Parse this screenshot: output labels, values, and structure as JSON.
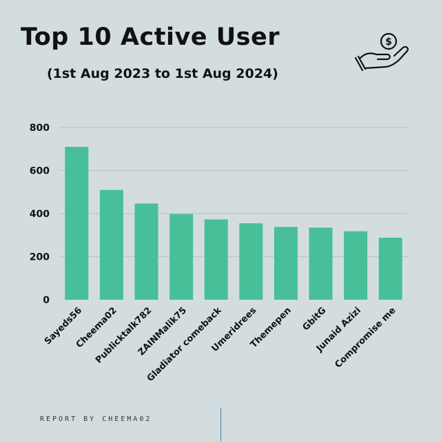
{
  "header": {
    "title": "Top 10 Active User",
    "subtitle": "(1st Aug 2023 to 1st Aug 2024)"
  },
  "icons": {
    "header_icon": "hand-dollar-coin-icon"
  },
  "footer": {
    "label": "REPORT BY CHEEMA02"
  },
  "colors": {
    "bar": "#47bf99",
    "grid": "#b7c2c5",
    "background": "#d3dde0",
    "text": "#111111"
  },
  "chart_data": {
    "type": "bar",
    "categories": [
      "Sayeds56",
      "Cheema02",
      "Publicktalk782",
      "ZAINMalik75",
      "Gladiator comeback",
      "Umeridrees",
      "Themepen",
      "GbitG",
      "Junaid Azizi",
      "Compromise me"
    ],
    "values": [
      710,
      510,
      447,
      398,
      373,
      355,
      338,
      335,
      318,
      288
    ],
    "ylim": [
      0,
      800
    ],
    "yticks": [
      0,
      200,
      400,
      600,
      800
    ],
    "xlabel": "",
    "ylabel": "",
    "grid": true,
    "legend": "none"
  }
}
